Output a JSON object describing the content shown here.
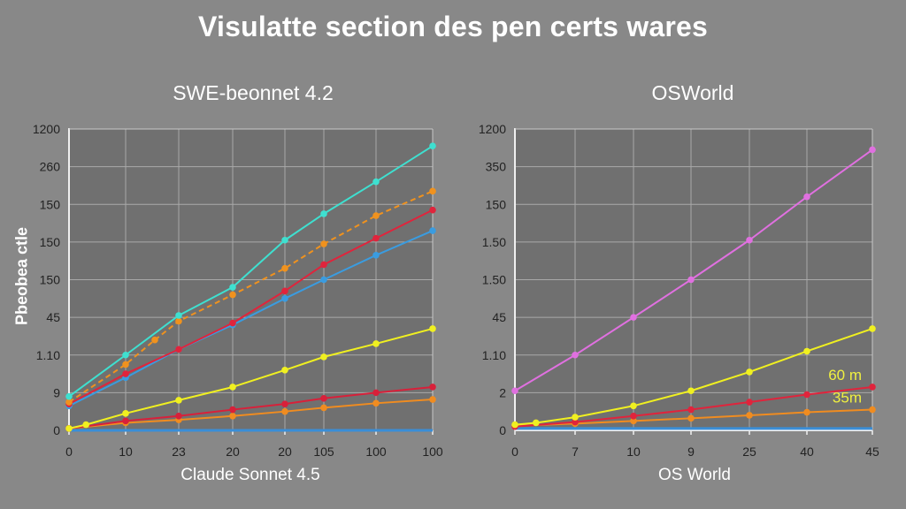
{
  "title": "Visulatte section des pen certs wares",
  "colors": {
    "background": "#888888",
    "plot_bg": "#707070",
    "grid": "#a9a9a9",
    "axis": "#f0f0f0"
  },
  "chart_data": [
    {
      "type": "line",
      "title": "SWE-beonnet 4.2",
      "xlabel": "Claude Sonnet 4.5",
      "ylabel": "Pbeobea ctle",
      "x_tick_labels": [
        "0",
        "10",
        "23",
        "20",
        "20",
        "105",
        "100",
        "100"
      ],
      "y_tick_labels": [
        "0",
        "9",
        "1.10",
        "45",
        "150",
        "150",
        "150",
        "260",
        "1200"
      ],
      "grid": true,
      "note": "values expressed in gridline units (0 = bottom tick, 8 = top tick); x index = tick index",
      "series": [
        {
          "name": "cyan",
          "color": "#3ee0d0",
          "dashed": false,
          "x": [
            0,
            1,
            2,
            3,
            4,
            5,
            6,
            7
          ],
          "values": [
            0.9,
            2.0,
            3.05,
            3.8,
            5.05,
            5.75,
            6.6,
            7.55
          ]
        },
        {
          "name": "orange-dashed",
          "color": "#f0921e",
          "dashed": true,
          "x": [
            0,
            1,
            1.55,
            2,
            3,
            4,
            5,
            6,
            7
          ],
          "values": [
            0.75,
            1.75,
            2.4,
            2.9,
            3.6,
            4.3,
            4.95,
            5.7,
            6.35
          ]
        },
        {
          "name": "red",
          "color": "#e0243c",
          "dashed": false,
          "x": [
            0,
            1,
            2,
            3,
            4,
            5,
            6,
            7
          ],
          "values": [
            0.7,
            1.5,
            2.15,
            2.85,
            3.7,
            4.4,
            5.1,
            5.85
          ]
        },
        {
          "name": "blue",
          "color": "#3a9ce0",
          "dashed": false,
          "x": [
            0,
            1,
            2,
            3,
            4,
            5,
            6,
            7
          ],
          "values": [
            0.65,
            1.4,
            2.15,
            2.8,
            3.5,
            4.0,
            4.65,
            5.3
          ]
        },
        {
          "name": "yellow",
          "color": "#f0f020",
          "dashed": false,
          "x": [
            0,
            0.3,
            1,
            2,
            3,
            4,
            5,
            6,
            7
          ],
          "values": [
            0.05,
            0.15,
            0.45,
            0.8,
            1.15,
            1.6,
            1.95,
            2.3,
            2.7
          ]
        },
        {
          "name": "red-low",
          "color": "#d8203a",
          "dashed": false,
          "x": [
            0,
            1,
            2,
            3,
            4,
            5,
            6,
            7
          ],
          "values": [
            0.05,
            0.25,
            0.38,
            0.55,
            0.7,
            0.85,
            1.0,
            1.15
          ]
        },
        {
          "name": "orange-low",
          "color": "#f08c20",
          "dashed": false,
          "x": [
            0,
            1,
            2,
            3,
            4,
            5,
            6,
            7
          ],
          "values": [
            0.05,
            0.2,
            0.28,
            0.38,
            0.5,
            0.6,
            0.72,
            0.82
          ]
        },
        {
          "name": "blue-flat",
          "color": "#3a8ed8",
          "dashed": false,
          "x": [
            0,
            7
          ],
          "values": [
            0.0,
            0.0
          ]
        }
      ]
    },
    {
      "type": "line",
      "title": "OSWorld",
      "xlabel": "OS World",
      "ylabel": "",
      "x_tick_labels": [
        "0",
        "7",
        "10",
        "9",
        "25",
        "40",
        "45"
      ],
      "y_tick_labels": [
        "0",
        "2",
        "1.10",
        "45",
        "1.50",
        "1.50",
        "150",
        "350",
        "1200"
      ],
      "grid": true,
      "note": "values expressed in gridline units (0 = bottom tick, 8 = top tick); x index = tick index",
      "annotations": [
        {
          "text": "60 m",
          "color": "#f0f040",
          "near_series": "red"
        },
        {
          "text": "35m",
          "color": "#f0f040",
          "near_series": "orange"
        }
      ],
      "series": [
        {
          "name": "magenta",
          "color": "#e070e0",
          "dashed": false,
          "x": [
            0,
            1,
            2,
            3,
            4,
            5,
            6
          ],
          "values": [
            1.05,
            2.0,
            3.0,
            4.0,
            5.05,
            6.2,
            7.45
          ]
        },
        {
          "name": "yellow",
          "color": "#f0f020",
          "dashed": false,
          "x": [
            0,
            0.35,
            1,
            2,
            3,
            4,
            5,
            6
          ],
          "values": [
            0.15,
            0.2,
            0.35,
            0.65,
            1.05,
            1.55,
            2.1,
            2.7
          ]
        },
        {
          "name": "red",
          "color": "#e0243c",
          "dashed": false,
          "x": [
            0,
            1,
            2,
            3,
            4,
            5,
            6
          ],
          "values": [
            0.1,
            0.22,
            0.38,
            0.55,
            0.75,
            0.95,
            1.15
          ]
        },
        {
          "name": "orange",
          "color": "#f08c20",
          "dashed": false,
          "x": [
            0,
            1,
            2,
            3,
            4,
            5,
            6
          ],
          "values": [
            0.12,
            0.18,
            0.25,
            0.32,
            0.4,
            0.48,
            0.55
          ]
        },
        {
          "name": "blue-flat",
          "color": "#3a8ed8",
          "dashed": false,
          "x": [
            0,
            6
          ],
          "values": [
            0.05,
            0.05
          ]
        }
      ]
    }
  ]
}
